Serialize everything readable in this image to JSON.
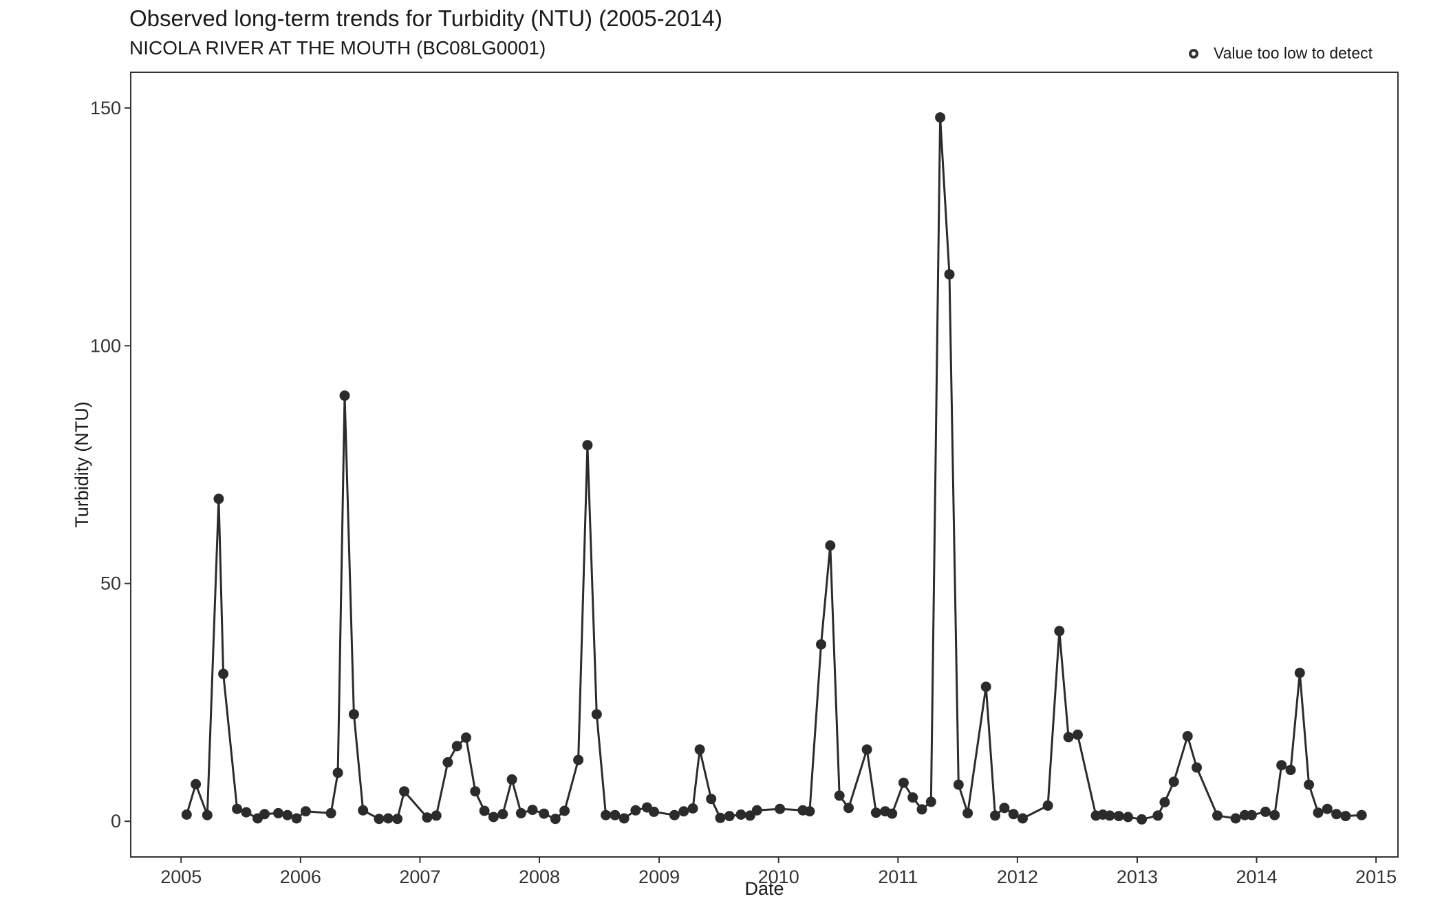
{
  "chart_data": {
    "type": "line",
    "title": "Observed long-term trends for Turbidity (NTU) (2005-2014)",
    "subtitle": "NICOLA RIVER AT THE MOUTH (BC08LG0001)",
    "xlabel": "Date",
    "ylabel": "Turbidity (NTU)",
    "legend": {
      "position": "top-right",
      "label": "Value too low to detect"
    },
    "xlim": [
      "2004-07-31",
      "2015-03-09"
    ],
    "ylim": [
      -7.5,
      157.5
    ],
    "x_ticks": [
      "2005",
      "2006",
      "2007",
      "2008",
      "2009",
      "2010",
      "2011",
      "2012",
      "2013",
      "2014",
      "2015"
    ],
    "y_ticks": [
      0,
      50,
      100,
      150
    ],
    "grid": false,
    "color": "#2b2b2b",
    "series": [
      {
        "points": [
          [
            "2005-01-18",
            1.4
          ],
          [
            "2005-02-15",
            7.8
          ],
          [
            "2005-03-22",
            1.3
          ],
          [
            "2005-04-26",
            67.8
          ],
          [
            "2005-05-10",
            31.0
          ],
          [
            "2005-06-21",
            2.6
          ],
          [
            "2005-07-19",
            1.9
          ],
          [
            "2005-08-23",
            0.6
          ],
          [
            "2005-09-13",
            1.5
          ],
          [
            "2005-10-25",
            1.7
          ],
          [
            "2005-11-22",
            1.3
          ],
          [
            "2005-12-20",
            0.6
          ],
          [
            "2006-01-17",
            2.1
          ],
          [
            "2006-04-04",
            1.7
          ],
          [
            "2006-04-25",
            10.2
          ],
          [
            "2006-05-16",
            89.5
          ],
          [
            "2006-06-13",
            22.5
          ],
          [
            "2006-07-11",
            2.3
          ],
          [
            "2006-08-29",
            0.5
          ],
          [
            "2006-09-26",
            0.6
          ],
          [
            "2006-10-24",
            0.5
          ],
          [
            "2006-11-14",
            6.3
          ],
          [
            "2007-01-23",
            0.8
          ],
          [
            "2007-02-20",
            1.2
          ],
          [
            "2007-03-27",
            12.4
          ],
          [
            "2007-04-24",
            15.8
          ],
          [
            "2007-05-22",
            17.6
          ],
          [
            "2007-06-19",
            6.3
          ],
          [
            "2007-07-17",
            2.2
          ],
          [
            "2007-08-14",
            0.9
          ],
          [
            "2007-09-11",
            1.5
          ],
          [
            "2007-10-09",
            8.8
          ],
          [
            "2007-11-06",
            1.7
          ],
          [
            "2007-12-11",
            2.4
          ],
          [
            "2008-01-15",
            1.6
          ],
          [
            "2008-02-19",
            0.5
          ],
          [
            "2008-03-18",
            2.2
          ],
          [
            "2008-04-29",
            12.9
          ],
          [
            "2008-05-27",
            79.1
          ],
          [
            "2008-06-24",
            22.5
          ],
          [
            "2008-07-22",
            1.3
          ],
          [
            "2008-08-19",
            1.3
          ],
          [
            "2008-09-16",
            0.6
          ],
          [
            "2008-10-21",
            2.3
          ],
          [
            "2008-11-25",
            2.9
          ],
          [
            "2008-12-16",
            2.0
          ],
          [
            "2009-02-17",
            1.3
          ],
          [
            "2009-03-17",
            2.1
          ],
          [
            "2009-04-14",
            2.7
          ],
          [
            "2009-05-05",
            15.1
          ],
          [
            "2009-06-09",
            4.7
          ],
          [
            "2009-07-07",
            0.7
          ],
          [
            "2009-08-04",
            1.1
          ],
          [
            "2009-09-08",
            1.4
          ],
          [
            "2009-10-06",
            1.2
          ],
          [
            "2009-10-27",
            2.3
          ],
          [
            "2010-01-05",
            2.6
          ],
          [
            "2010-03-16",
            2.3
          ],
          [
            "2010-04-06",
            2.1
          ],
          [
            "2010-05-11",
            37.2
          ],
          [
            "2010-06-08",
            58.0
          ],
          [
            "2010-07-06",
            5.4
          ],
          [
            "2010-08-03",
            2.8
          ],
          [
            "2010-09-28",
            15.1
          ],
          [
            "2010-10-26",
            1.8
          ],
          [
            "2010-11-23",
            2.1
          ],
          [
            "2010-12-14",
            1.6
          ],
          [
            "2011-01-18",
            8.1
          ],
          [
            "2011-02-15",
            5.0
          ],
          [
            "2011-03-15",
            2.5
          ],
          [
            "2011-04-12",
            4.1
          ],
          [
            "2011-05-10",
            148.0
          ],
          [
            "2011-06-07",
            115.0
          ],
          [
            "2011-07-05",
            7.7
          ],
          [
            "2011-08-02",
            1.7
          ],
          [
            "2011-09-27",
            28.3
          ],
          [
            "2011-10-25",
            1.2
          ],
          [
            "2011-11-22",
            2.8
          ],
          [
            "2011-12-20",
            1.5
          ],
          [
            "2012-01-17",
            0.6
          ],
          [
            "2012-04-03",
            3.3
          ],
          [
            "2012-05-08",
            40.0
          ],
          [
            "2012-06-05",
            17.7
          ],
          [
            "2012-07-03",
            18.2
          ],
          [
            "2012-08-28",
            1.2
          ],
          [
            "2012-09-18",
            1.4
          ],
          [
            "2012-10-09",
            1.2
          ],
          [
            "2012-11-06",
            1.1
          ],
          [
            "2012-12-04",
            0.9
          ],
          [
            "2013-01-15",
            0.4
          ],
          [
            "2013-03-05",
            1.2
          ],
          [
            "2013-03-26",
            4.0
          ],
          [
            "2013-04-23",
            8.3
          ],
          [
            "2013-06-04",
            17.9
          ],
          [
            "2013-07-02",
            11.3
          ],
          [
            "2013-09-03",
            1.2
          ],
          [
            "2013-10-29",
            0.6
          ],
          [
            "2013-11-26",
            1.3
          ],
          [
            "2013-12-17",
            1.3
          ],
          [
            "2014-01-28",
            2.0
          ],
          [
            "2014-02-25",
            1.3
          ],
          [
            "2014-03-18",
            11.8
          ],
          [
            "2014-04-15",
            10.8
          ],
          [
            "2014-05-13",
            31.2
          ],
          [
            "2014-06-10",
            7.7
          ],
          [
            "2014-07-08",
            1.8
          ],
          [
            "2014-08-05",
            2.6
          ],
          [
            "2014-09-02",
            1.5
          ],
          [
            "2014-09-30",
            1.1
          ],
          [
            "2014-11-18",
            1.3
          ]
        ]
      }
    ]
  }
}
